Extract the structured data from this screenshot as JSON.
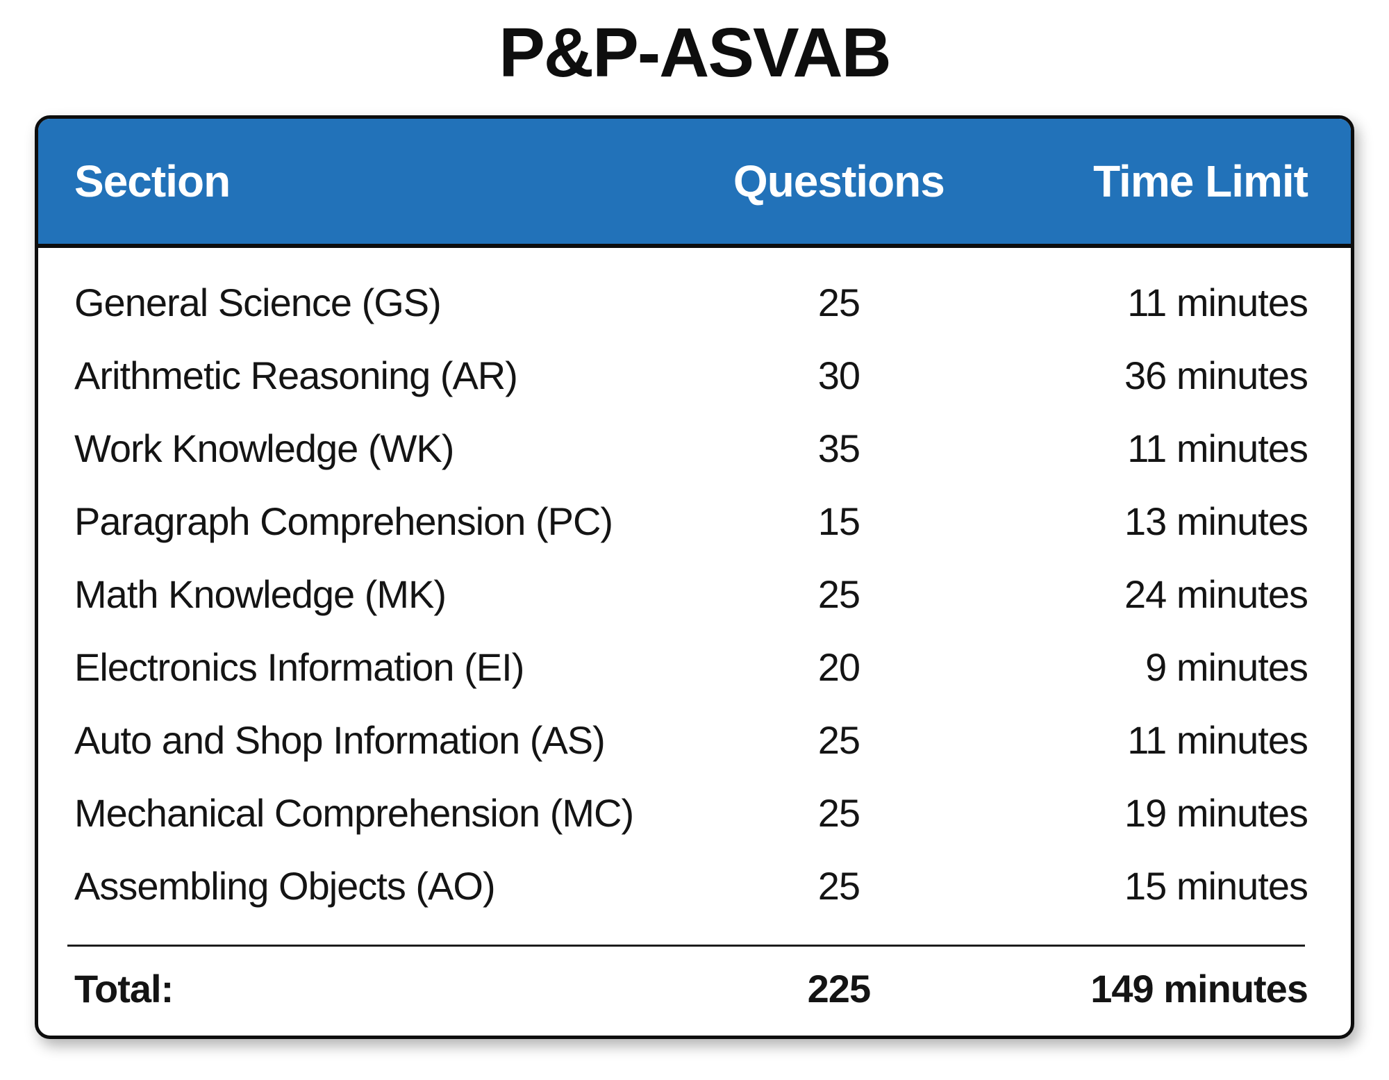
{
  "title": "P&P-ASVAB",
  "colors": {
    "header_bg": "#2272B9",
    "header_text": "#FFFFFF",
    "text": "#141414",
    "border": "#0D0D0D",
    "body_bg": "#FFFFFF"
  },
  "table": {
    "columns": [
      "Section",
      "Questions",
      "Time Limit"
    ],
    "rows": [
      {
        "section": "General Science (GS)",
        "questions": "25",
        "time": "11 minutes"
      },
      {
        "section": "Arithmetic Reasoning (AR)",
        "questions": "30",
        "time": "36 minutes"
      },
      {
        "section": "Work Knowledge (WK)",
        "questions": "35",
        "time": "11 minutes"
      },
      {
        "section": "Paragraph Comprehension (PC)",
        "questions": "15",
        "time": "13 minutes"
      },
      {
        "section": "Math Knowledge (MK)",
        "questions": "25",
        "time": "24 minutes"
      },
      {
        "section": "Electronics Information (EI)",
        "questions": "20",
        "time": "9 minutes"
      },
      {
        "section": "Auto and Shop Information (AS)",
        "questions": "25",
        "time": "11 minutes"
      },
      {
        "section": "Mechanical Comprehension (MC)",
        "questions": "25",
        "time": "19 minutes"
      },
      {
        "section": "Assembling Objects (AO)",
        "questions": "25",
        "time": "15 minutes"
      }
    ],
    "total": {
      "label": "Total:",
      "questions": "225",
      "time": "149 minutes"
    }
  },
  "chart_data": {
    "type": "table",
    "title": "P&P-ASVAB",
    "columns": [
      "Section",
      "Questions",
      "Time Limit"
    ],
    "rows": [
      [
        "General Science (GS)",
        25,
        "11 minutes"
      ],
      [
        "Arithmetic Reasoning (AR)",
        30,
        "36 minutes"
      ],
      [
        "Work Knowledge (WK)",
        35,
        "11 minutes"
      ],
      [
        "Paragraph Comprehension (PC)",
        15,
        "13 minutes"
      ],
      [
        "Math Knowledge (MK)",
        25,
        "24 minutes"
      ],
      [
        "Electronics Information (EI)",
        20,
        "9 minutes"
      ],
      [
        "Auto and Shop Information (AS)",
        25,
        "11 minutes"
      ],
      [
        "Mechanical Comprehension (MC)",
        25,
        "19 minutes"
      ],
      [
        "Assembling Objects (AO)",
        25,
        "15 minutes"
      ]
    ],
    "total_row": [
      "Total:",
      225,
      "149 minutes"
    ],
    "layout": {
      "header_style": "blue banner, white bold text",
      "questions_align": "center",
      "time_align": "right",
      "grid": "off"
    }
  }
}
